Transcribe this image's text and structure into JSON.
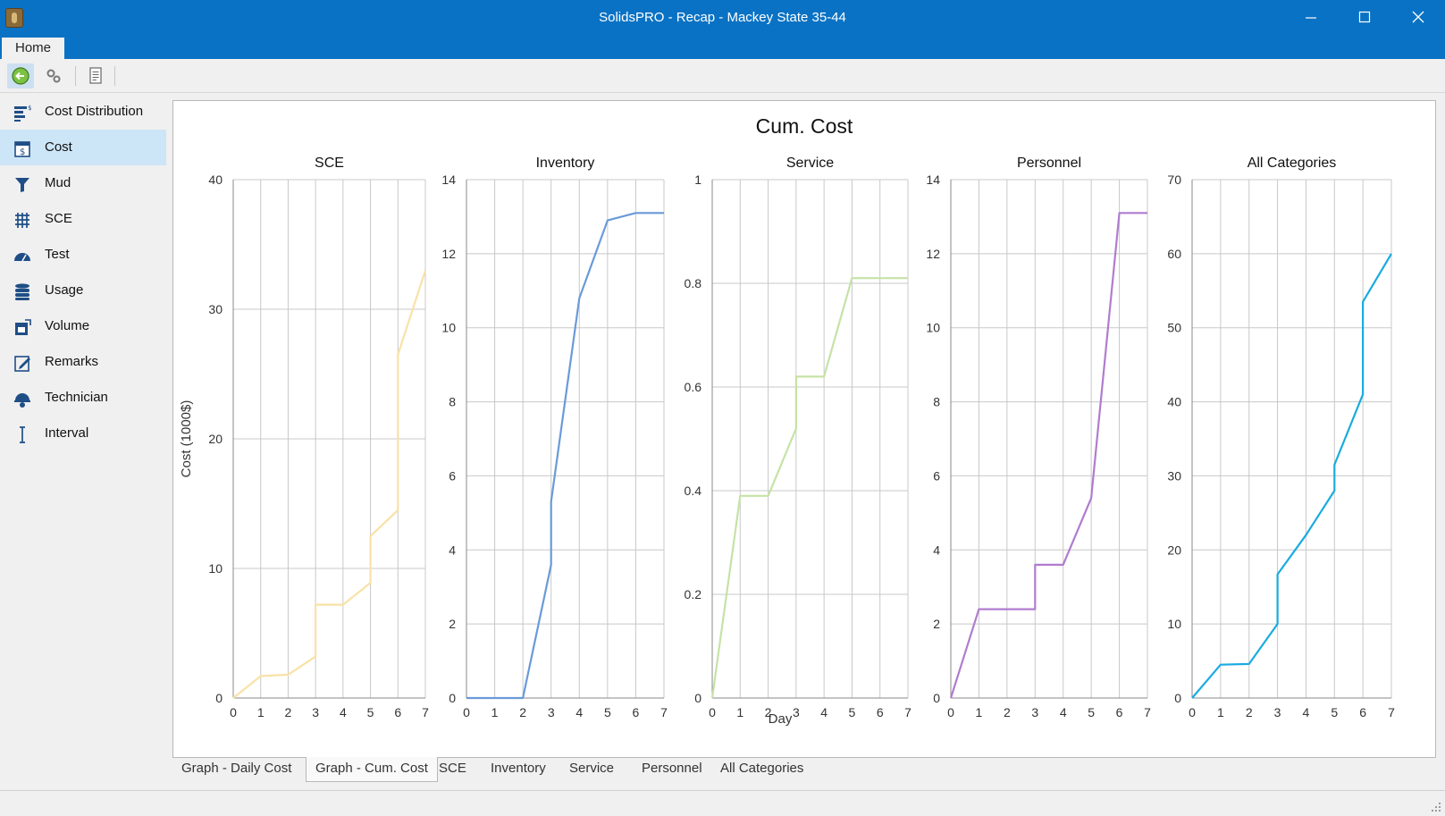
{
  "window": {
    "title": "SolidsPRO - Recap - Mackey State 35-44"
  },
  "ribbon": {
    "tabs": [
      "Home"
    ]
  },
  "toolbar": {
    "buttons": [
      "back-icon",
      "settings-icon",
      "report-icon"
    ]
  },
  "sidebar": {
    "items": [
      {
        "label": "Cost Distribution",
        "icon": "cost-distribution-icon",
        "active": false
      },
      {
        "label": "Cost",
        "icon": "cost-icon",
        "active": true
      },
      {
        "label": "Mud",
        "icon": "mud-icon",
        "active": false
      },
      {
        "label": "SCE",
        "icon": "sce-icon",
        "active": false
      },
      {
        "label": "Test",
        "icon": "test-icon",
        "active": false
      },
      {
        "label": "Usage",
        "icon": "usage-icon",
        "active": false
      },
      {
        "label": "Volume",
        "icon": "volume-icon",
        "active": false
      },
      {
        "label": "Remarks",
        "icon": "remarks-icon",
        "active": false
      },
      {
        "label": "Technician",
        "icon": "technician-icon",
        "active": false
      },
      {
        "label": "Interval",
        "icon": "interval-icon",
        "active": false
      }
    ]
  },
  "bottom_tabs": [
    {
      "label": "Graph - Daily Cost",
      "active": false
    },
    {
      "label": "Graph - Cum. Cost",
      "active": true
    },
    {
      "label": "SCE",
      "active": false
    },
    {
      "label": "Inventory",
      "active": false
    },
    {
      "label": "Service",
      "active": false
    },
    {
      "label": "Personnel",
      "active": false
    },
    {
      "label": "All Categories",
      "active": false
    }
  ],
  "chart_data": {
    "type": "line",
    "title": "Cum. Cost",
    "xlabel": "Day",
    "ylabel": "Cost (1000$)",
    "grid": true,
    "panels": [
      {
        "title": "SCE",
        "color": "#f9e2a6",
        "xlim": [
          0,
          7
        ],
        "ylim": [
          0,
          40
        ],
        "yticks": [
          "0",
          "10",
          "20",
          "30",
          "40"
        ],
        "x": [
          0,
          1,
          2,
          3,
          3,
          4,
          5,
          5,
          6,
          6,
          7
        ],
        "y": [
          0,
          1.7,
          1.8,
          3.2,
          7.2,
          7.2,
          8.9,
          12.5,
          14.5,
          26.5,
          33
        ]
      },
      {
        "title": "Inventory",
        "color": "#6a9ad8",
        "xlim": [
          0,
          7
        ],
        "ylim": [
          0,
          14
        ],
        "yticks": [
          "0",
          "2",
          "4",
          "6",
          "8",
          "10",
          "12",
          "14"
        ],
        "x": [
          0,
          2,
          3,
          3,
          4,
          5,
          6,
          7
        ],
        "y": [
          0,
          0,
          3.6,
          5.3,
          10.8,
          12.9,
          13.1,
          13.1
        ]
      },
      {
        "title": "Service",
        "color": "#c6e2a6",
        "xlim": [
          0,
          7
        ],
        "ylim": [
          0,
          1
        ],
        "yticks": [
          "0",
          "0.2",
          "0.4",
          "0.6",
          "0.8",
          "1"
        ],
        "x": [
          0,
          1,
          2,
          3,
          3,
          4,
          5,
          6,
          7
        ],
        "y": [
          0,
          0.39,
          0.39,
          0.52,
          0.62,
          0.62,
          0.81,
          0.81,
          0.81
        ]
      },
      {
        "title": "Personnel",
        "color": "#b07ccf",
        "xlim": [
          0,
          7
        ],
        "ylim": [
          0,
          14
        ],
        "yticks": [
          "0",
          "2",
          "4",
          "6",
          "8",
          "10",
          "12",
          "14"
        ],
        "x": [
          0,
          1,
          3,
          3,
          4,
          5,
          6,
          7
        ],
        "y": [
          0,
          2.4,
          2.4,
          3.6,
          3.6,
          5.4,
          13.1,
          13.1
        ]
      },
      {
        "title": "All Categories",
        "color": "#1aabe0",
        "xlim": [
          0,
          7
        ],
        "ylim": [
          0,
          70
        ],
        "yticks": [
          "0",
          "10",
          "20",
          "30",
          "40",
          "50",
          "60",
          "70"
        ],
        "x": [
          0,
          1,
          2,
          3,
          3,
          4,
          5,
          5,
          6,
          6,
          7
        ],
        "y": [
          0,
          4.5,
          4.6,
          10,
          16.7,
          22,
          28,
          31.5,
          41,
          53.5,
          60
        ]
      }
    ]
  }
}
